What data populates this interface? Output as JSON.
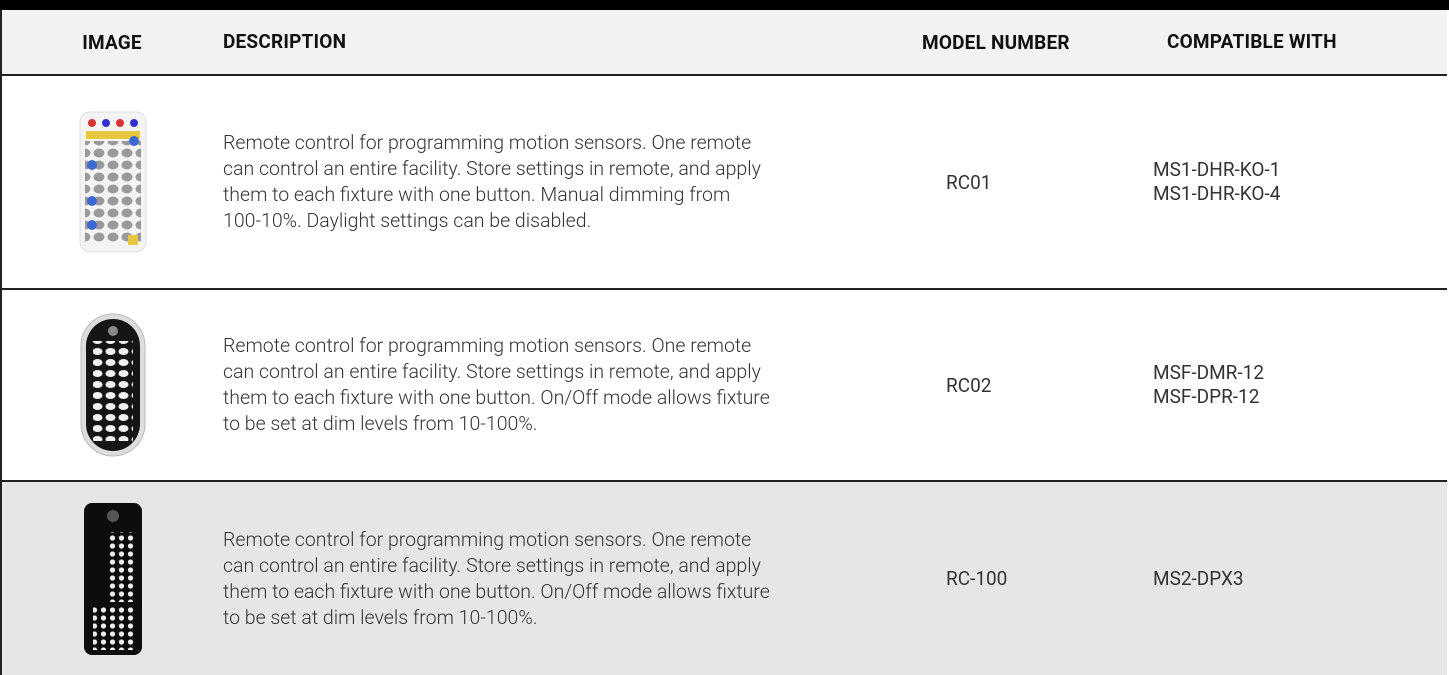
{
  "table": {
    "header": [
      "IMAGE",
      "DESCRIPTION",
      "MODEL NUMBER",
      "COMPATIBLE WITH"
    ],
    "rows": [
      {
        "description": [
          "Remote control for programming motion sensors. One remote",
          "can control an entire facility. Store settings in remote, and apply",
          "them to each fixture with one button. Manual dimming from",
          "100-10%. Daylight settings can be disabled."
        ],
        "model": "RC01",
        "compatible": [
          "MS1-DHR-KO-1",
          "MS1-DHR-KO-4"
        ]
      },
      {
        "description": [
          "Remote control for programming motion sensors. One remote",
          "can control an entire facility. Store settings in remote, and apply",
          "them to each fixture with one button. On/Off mode allows fixture",
          "to be set at dim levels from 10-100%."
        ],
        "model": "RC02",
        "compatible": [
          "MSF-DMR-12",
          "MSF-DPR-12"
        ]
      },
      {
        "description": [
          "Remote control for programming motion sensors. One remote",
          "can control an entire facility. Store settings in remote, and apply",
          "them to each fixture with one button. On/Off mode allows fixture",
          "to be set at dim levels from 10-100%."
        ],
        "model": "RC-100",
        "compatible": [
          "MS2-DPX3"
        ]
      }
    ]
  }
}
